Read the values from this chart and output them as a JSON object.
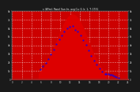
{
  "title": "s (W/m): Panel Sun Irr, avg Cu: 0, b: 1, T: 1731",
  "fig_bg_color": "#1a1a1a",
  "plot_bg": "#cc0000",
  "fill_color": "#dd0000",
  "line_color": "#cc0000",
  "avg_color": "#0000ff",
  "grid_color": "#ffffff",
  "tick_color": "#cccccc",
  "label_color": "#cccccc",
  "y_max": 8000,
  "y_min": 0,
  "x_min": 0,
  "x_max": 24,
  "peak_hour": 12.5,
  "start_hour": 5.5,
  "end_hour": 19.5,
  "peak_value": 7600,
  "avg_extend_end": 22.0,
  "avg_extend_val": 2500
}
